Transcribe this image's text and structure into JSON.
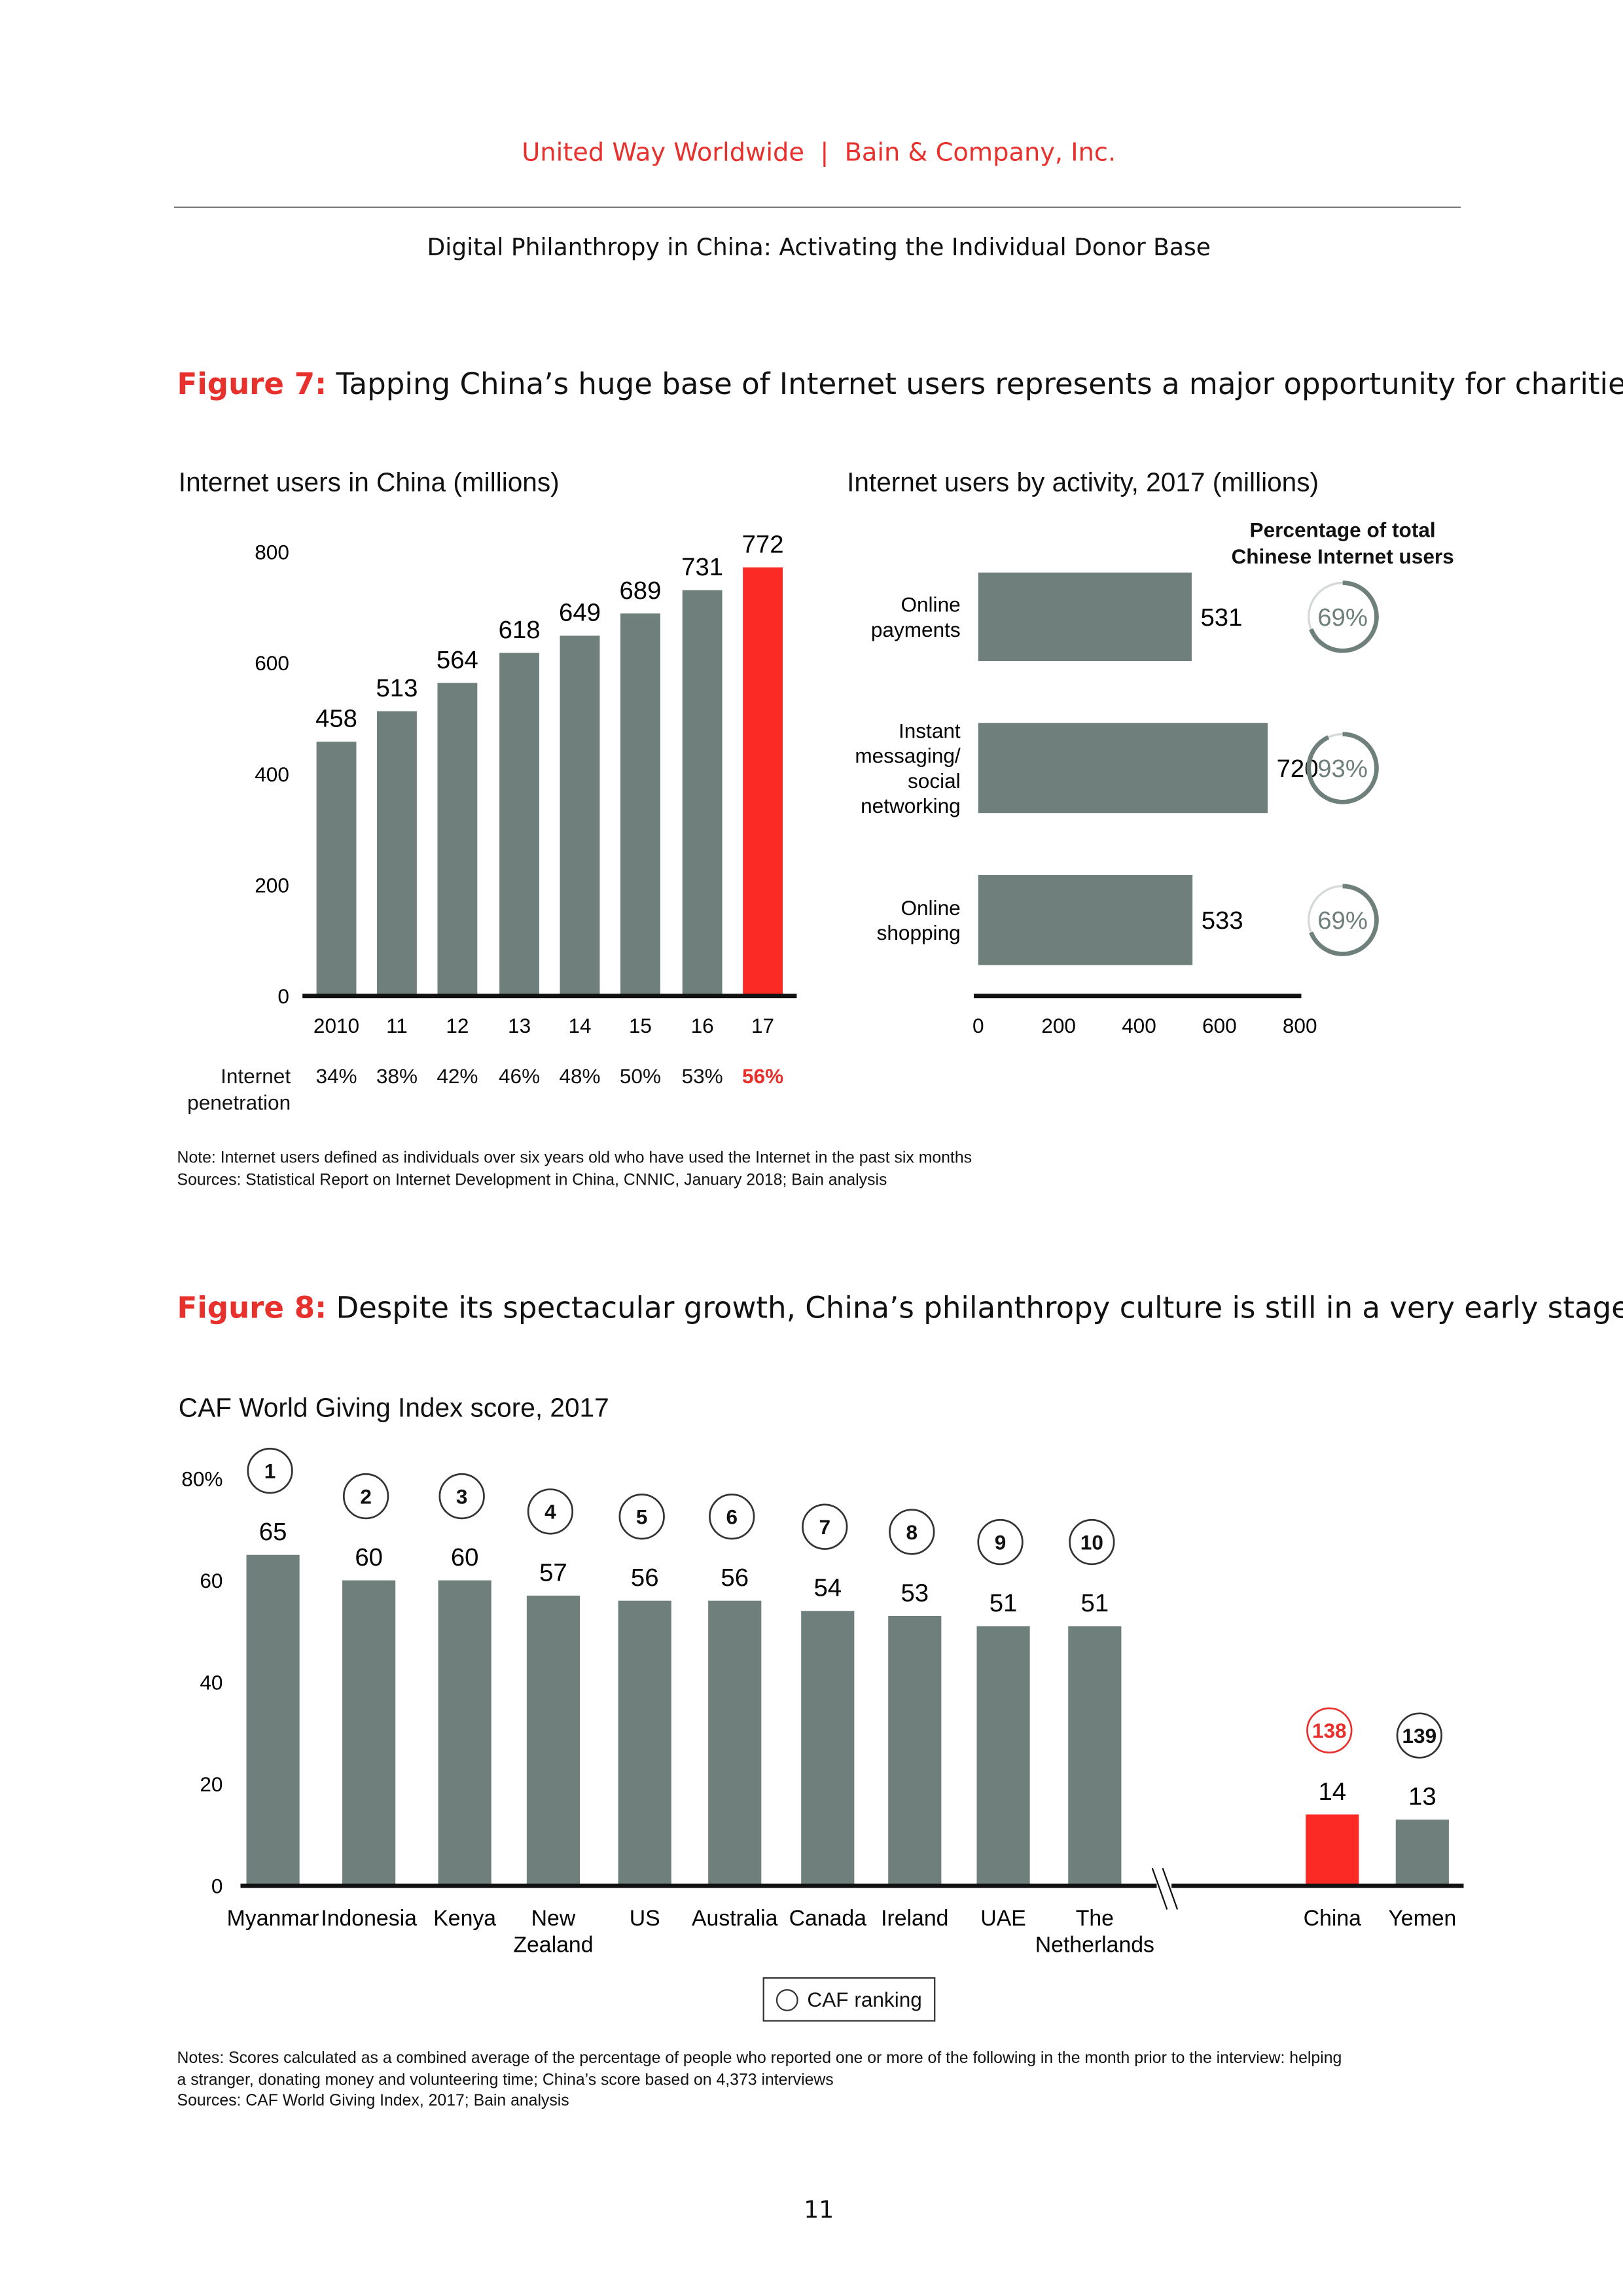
{
  "header": {
    "org1": "United Way Worldwide",
    "sep": "|",
    "org2": "Bain & Company, Inc.",
    "subtitle": "Digital Philanthropy in China: Activating the Individual Donor Base"
  },
  "colors": {
    "accent": "#e8302c",
    "bar": "#6f7f7c",
    "highlight": "#fb2a25"
  },
  "figure7": {
    "label": "Figure 7:",
    "title": "Tapping China’s huge base of Internet users represents a major opportunity for charities",
    "note": "Note: Internet users defined as individuals over six years old who have used the Internet in the past six months",
    "sources": "Sources: Statistical Report on Internet Development in China, CNNIC, January 2018; Bain analysis"
  },
  "figure8": {
    "label": "Figure 8:",
    "title": "Despite its spectacular growth, China’s philanthropy culture is still in a very early stage",
    "legend": "CAF ranking",
    "notes": [
      "Notes: Scores calculated as a combined average of the percentage of people who reported one or more of the following in the month prior to the interview: helping",
      "a stranger, donating money and volunteering time; China’s score based on 4,373 interviews",
      "Sources: CAF World Giving Index, 2017; Bain analysis"
    ]
  },
  "page_number": "11",
  "chart_data": [
    {
      "type": "bar",
      "title": "Internet users in China (millions)",
      "categories": [
        "2010",
        "11",
        "12",
        "13",
        "14",
        "15",
        "16",
        "17"
      ],
      "values": [
        458,
        513,
        564,
        618,
        649,
        689,
        731,
        772
      ],
      "highlight_index": 7,
      "ylim": [
        0,
        800
      ],
      "yticks": [
        "0",
        "200",
        "400",
        "600",
        "800"
      ],
      "row_label": "Internet penetration",
      "row_values": [
        "34%",
        "38%",
        "42%",
        "46%",
        "48%",
        "50%",
        "53%",
        "56%"
      ]
    },
    {
      "type": "bar",
      "orientation": "horizontal",
      "title": "Internet users by activity, 2017 (millions)",
      "categories": [
        "Online payments",
        "Instant messaging/ social networking",
        "Online shopping"
      ],
      "category_lines": [
        [
          "Online",
          "payments"
        ],
        [
          "Instant",
          "messaging/",
          "social",
          "networking"
        ],
        [
          "Online",
          "shopping"
        ]
      ],
      "values": [
        531,
        720,
        533
      ],
      "xlim": [
        0,
        800
      ],
      "xticks": [
        "0",
        "200",
        "400",
        "600",
        "800"
      ],
      "side_title": [
        "Percentage of total",
        "Chinese Internet users"
      ],
      "side_values": [
        69,
        93,
        69
      ],
      "side_labels": [
        "69%",
        "93%",
        "69%"
      ]
    },
    {
      "type": "bar",
      "title": "CAF World Giving Index score, 2017",
      "categories": [
        "Myanmar",
        "Indonesia",
        "Kenya",
        "New Zealand",
        "US",
        "Australia",
        "Canada",
        "Ireland",
        "UAE",
        "The Netherlands",
        "China",
        "Yemen"
      ],
      "category_lines": [
        [
          "Myanmar"
        ],
        [
          "Indonesia"
        ],
        [
          "Kenya"
        ],
        [
          "New",
          "Zealand"
        ],
        [
          "US"
        ],
        [
          "Australia"
        ],
        [
          "Canada"
        ],
        [
          "Ireland"
        ],
        [
          "UAE"
        ],
        [
          "The",
          "Netherlands"
        ],
        [
          "China"
        ],
        [
          "Yemen"
        ]
      ],
      "values": [
        65,
        60,
        60,
        57,
        56,
        56,
        54,
        53,
        51,
        51,
        14,
        13
      ],
      "ranks": [
        "1",
        "2",
        "3",
        "4",
        "5",
        "6",
        "7",
        "8",
        "9",
        "10",
        "138",
        "139"
      ],
      "highlight_index": 10,
      "axis_break_after": "The Netherlands",
      "ylim": [
        0,
        80
      ],
      "yticks": [
        "0",
        "20",
        "40",
        "60",
        "80%"
      ]
    }
  ]
}
